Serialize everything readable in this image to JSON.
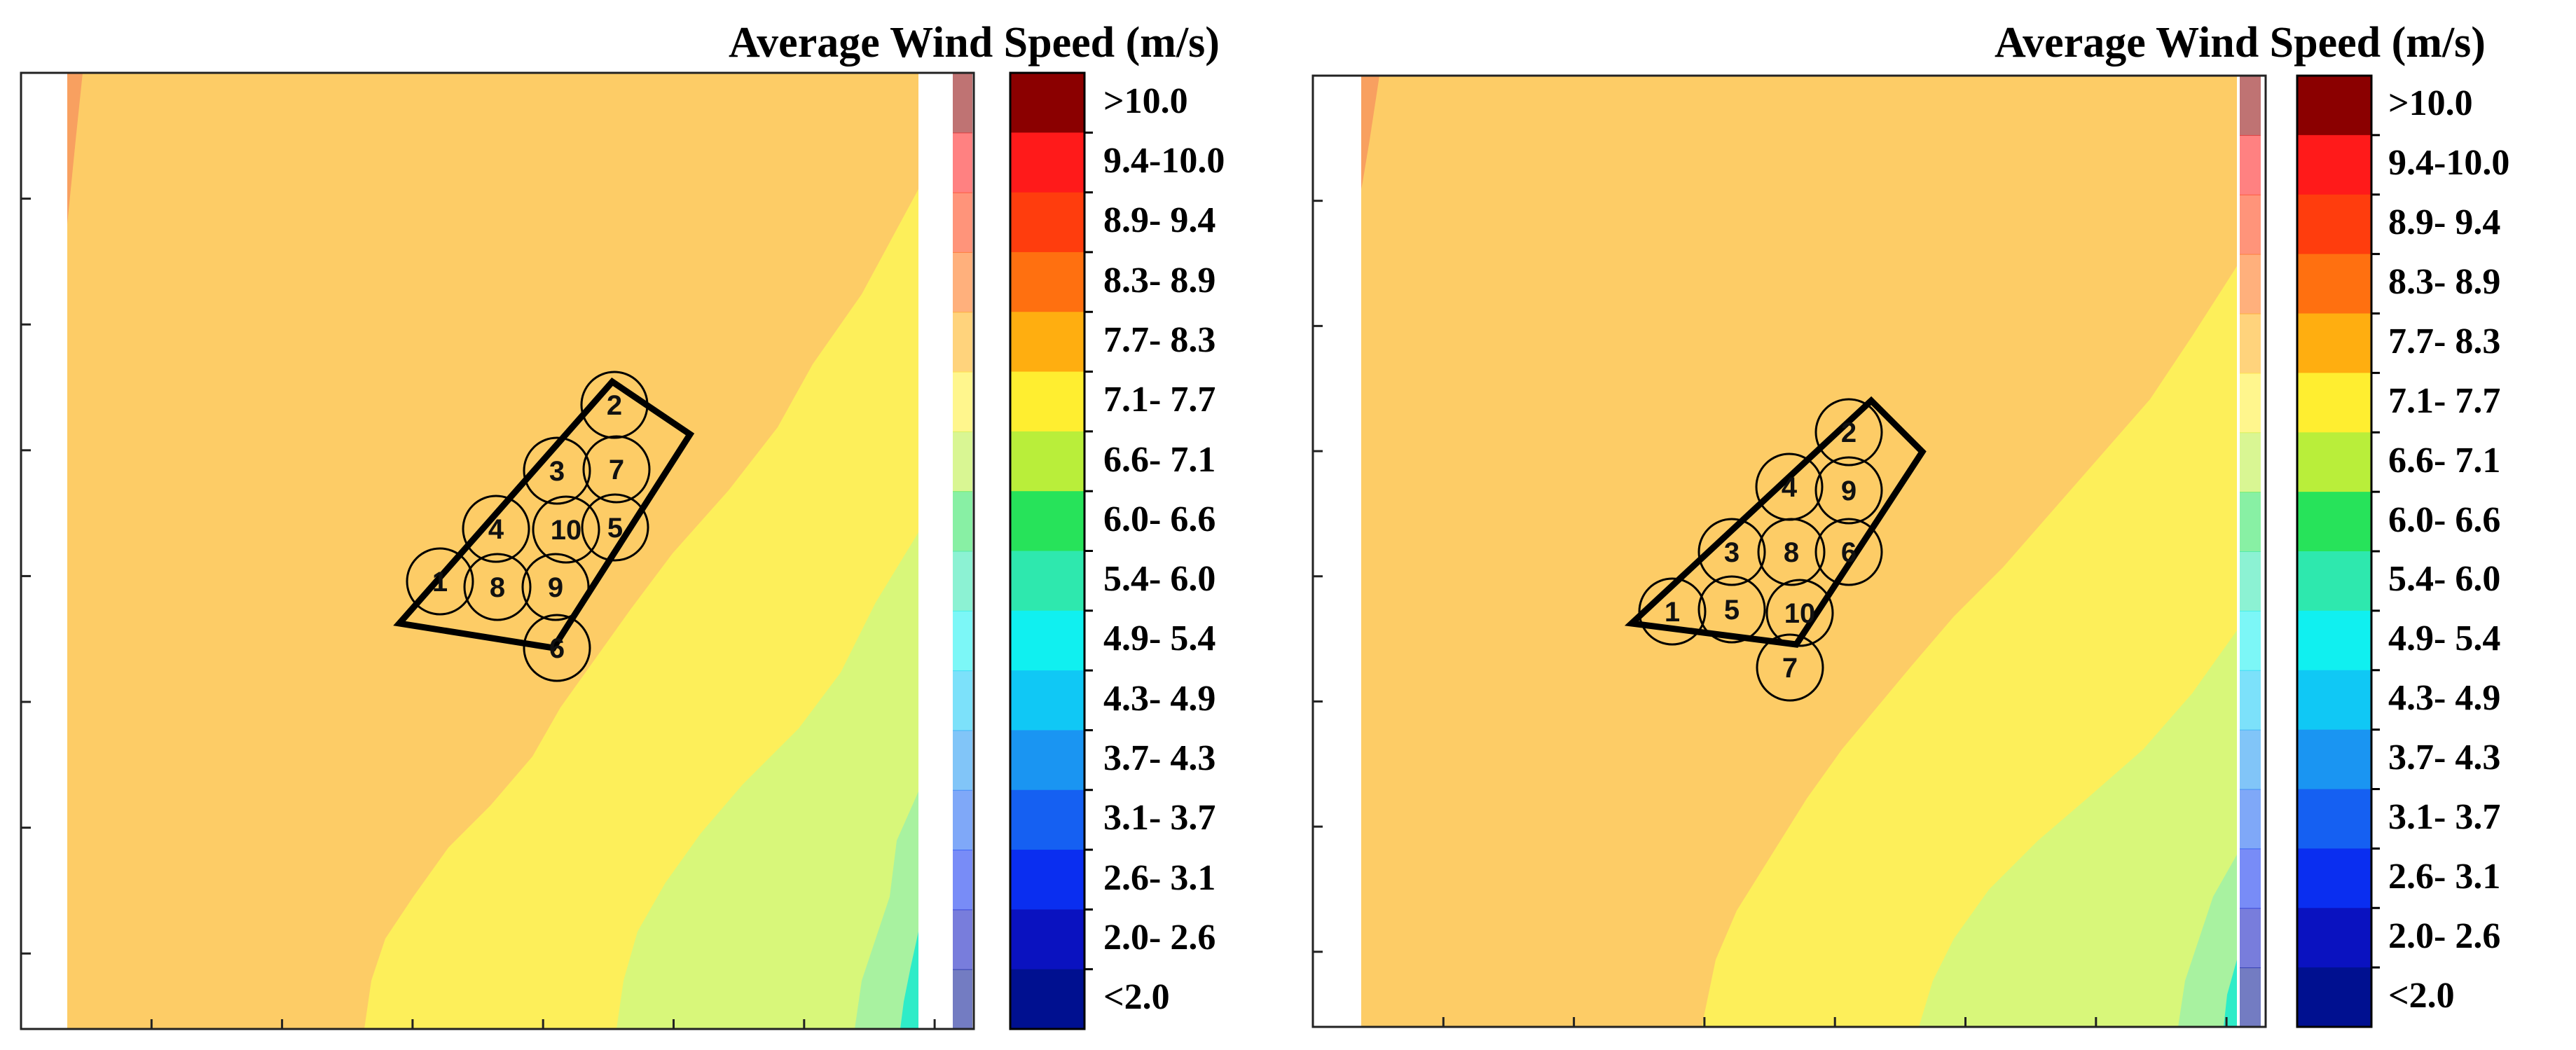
{
  "chart_data": [
    {
      "type": "heatmap",
      "panel": "left",
      "title": "Average Wind Speed (m/s)",
      "legend_placement": "right",
      "legend": {
        "labels": [
          ">10.0",
          "9.4-10.0",
          "8.9- 9.4",
          "8.3- 8.9",
          "7.7- 8.3",
          "7.1- 7.7",
          "6.6- 7.1",
          "6.0- 6.6",
          "5.4- 6.0",
          "4.9- 5.4",
          "4.3- 4.9",
          "3.7- 4.3",
          "3.1- 3.7",
          "2.6- 3.1",
          "2.0- 2.6",
          "<2.0"
        ],
        "colors": [
          "#8b0000",
          "#ff1a1a",
          "#ff3d0d",
          "#ff7010",
          "#ffae10",
          "#ffee30",
          "#b9ee3a",
          "#27e35a",
          "#2ee8ae",
          "#10f0f0",
          "#10c8f5",
          "#1a95f2",
          "#1560f2",
          "#0a2ef0",
          "#0a12c0",
          "#001090"
        ]
      },
      "regions": [
        {
          "band": "7.7- 8.3",
          "color": "#fdcc66"
        },
        {
          "band": "7.1- 7.7",
          "color": "#fdef5a"
        },
        {
          "band": "6.6- 7.1",
          "color": "#d8f77a"
        },
        {
          "band": "6.0- 6.6",
          "color": "#a8f2a0"
        },
        {
          "band": "5.4- 6.0",
          "color": "#2eecc8"
        }
      ],
      "turbines": [
        "1",
        "2",
        "3",
        "4",
        "5",
        "6",
        "7",
        "8",
        "9",
        "10"
      ]
    },
    {
      "type": "heatmap",
      "panel": "right",
      "title": "Average Wind Speed (m/s)",
      "legend_placement": "right",
      "legend": {
        "labels": [
          ">10.0",
          "9.4-10.0",
          "8.9- 9.4",
          "8.3- 8.9",
          "7.7- 8.3",
          "7.1- 7.7",
          "6.6- 7.1",
          "6.0- 6.6",
          "5.4- 6.0",
          "4.9- 5.4",
          "4.3- 4.9",
          "3.7- 4.3",
          "3.1- 3.7",
          "2.6- 3.1",
          "2.0- 2.6",
          "<2.0"
        ],
        "colors": [
          "#8b0000",
          "#ff1a1a",
          "#ff3d0d",
          "#ff7010",
          "#ffae10",
          "#ffee30",
          "#b9ee3a",
          "#27e35a",
          "#2ee8ae",
          "#10f0f0",
          "#10c8f5",
          "#1a95f2",
          "#1560f2",
          "#0a2ef0",
          "#0a12c0",
          "#001090"
        ]
      },
      "regions": [
        {
          "band": "7.7- 8.3",
          "color": "#fdcc66"
        },
        {
          "band": "7.1- 7.7",
          "color": "#fdef5a"
        },
        {
          "band": "6.6- 7.1",
          "color": "#d8f77a"
        },
        {
          "band": "6.0- 6.6",
          "color": "#a8f2a0"
        },
        {
          "band": "5.4- 6.0",
          "color": "#2eecc8"
        }
      ],
      "turbines": [
        "1",
        "2",
        "3",
        "4",
        "5",
        "6",
        "7",
        "8",
        "9",
        "10"
      ]
    }
  ]
}
